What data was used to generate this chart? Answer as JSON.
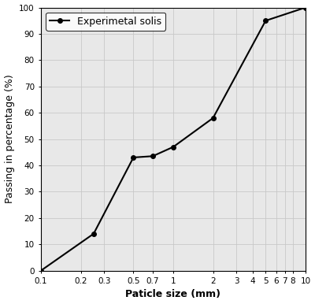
{
  "x_data": [
    0.1,
    0.25,
    0.5,
    0.7,
    1.0,
    2.0,
    5.0,
    10.0
  ],
  "y_data": [
    0,
    14,
    43,
    43.5,
    47,
    58,
    95,
    100
  ],
  "xlabel": "Paticle size (mm)",
  "ylabel": "Passing in percentage (%)",
  "legend_label": "Experimetal solis",
  "xlim": [
    0.1,
    10
  ],
  "ylim": [
    0,
    100
  ],
  "xticks": [
    0.1,
    0.2,
    0.3,
    0.5,
    0.7,
    1,
    2,
    3,
    4,
    5,
    6,
    7,
    8,
    10
  ],
  "xtick_labels": [
    "0.1",
    "0.2",
    "0.3",
    "0.5",
    "0.7",
    "1",
    "2",
    "3",
    "4",
    "5",
    "6",
    "7",
    "8",
    "10"
  ],
  "yticks": [
    0,
    10,
    20,
    30,
    40,
    50,
    60,
    70,
    80,
    90,
    100
  ],
  "ytick_labels": [
    "0",
    "10",
    "20",
    "30",
    "40",
    "50",
    "60",
    "70",
    "80",
    "90",
    "100"
  ],
  "line_color": "#000000",
  "marker": "o",
  "marker_size": 4,
  "linewidth": 1.5,
  "grid_color": "#c8c8c8",
  "background_color": "#e8e8e8",
  "fig_background": "#ffffff",
  "xlabel_fontsize": 9,
  "ylabel_fontsize": 9,
  "tick_fontsize": 7.5,
  "legend_fontsize": 9
}
